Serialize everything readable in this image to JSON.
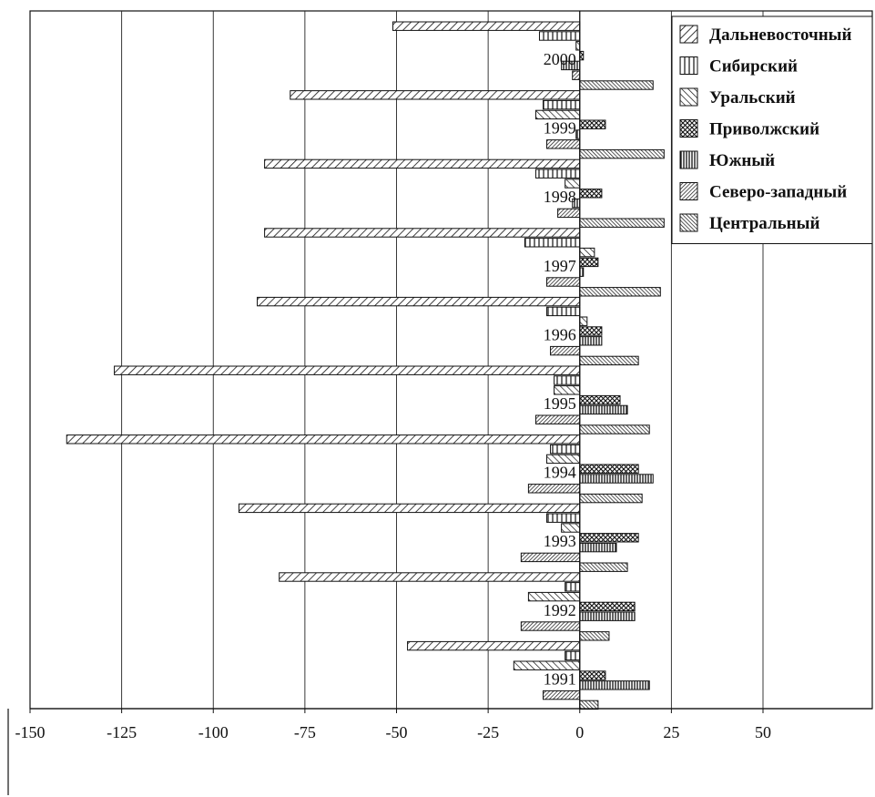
{
  "chart_data": {
    "type": "bar",
    "orientation": "horizontal",
    "title": "",
    "xlabel": "",
    "ylabel": "",
    "xlim": [
      -150,
      50
    ],
    "xticks": [
      -150,
      -125,
      -100,
      -75,
      -50,
      -25,
      0,
      25,
      50
    ],
    "grid": "vertical",
    "legend": "top-right",
    "categories": [
      "2000",
      "1999",
      "1998",
      "1997",
      "1996",
      "1995",
      "1994",
      "1993",
      "1992",
      "1991"
    ],
    "series": [
      {
        "name": "Дальневосточный",
        "pattern": "diag-fwd",
        "values": [
          -51,
          -79,
          -86,
          -86,
          -88,
          -127,
          -140,
          -93,
          -82,
          -47
        ]
      },
      {
        "name": "Сибирский",
        "pattern": "vert-wide",
        "values": [
          -11,
          -10,
          -12,
          -15,
          -9,
          -7,
          -8,
          -9,
          -4,
          -4
        ]
      },
      {
        "name": "Уральский",
        "pattern": "diag-back",
        "values": [
          -1,
          -12,
          -4,
          4,
          2,
          -7,
          -9,
          -5,
          -14,
          -18
        ]
      },
      {
        "name": "Приволжский",
        "pattern": "cross",
        "values": [
          1,
          7,
          6,
          5,
          6,
          11,
          16,
          16,
          15,
          7
        ]
      },
      {
        "name": "Южный",
        "pattern": "vert-dense",
        "values": [
          -5,
          -1,
          -2,
          1,
          6,
          13,
          20,
          10,
          15,
          19
        ]
      },
      {
        "name": "Северо-западный",
        "pattern": "diag-dense",
        "values": [
          -2,
          -9,
          -6,
          -9,
          -8,
          -12,
          -14,
          -16,
          -16,
          -10
        ]
      },
      {
        "name": "Центральный",
        "pattern": "diag-dense-back",
        "values": [
          20,
          23,
          23,
          22,
          16,
          19,
          17,
          13,
          8,
          5
        ]
      }
    ]
  }
}
